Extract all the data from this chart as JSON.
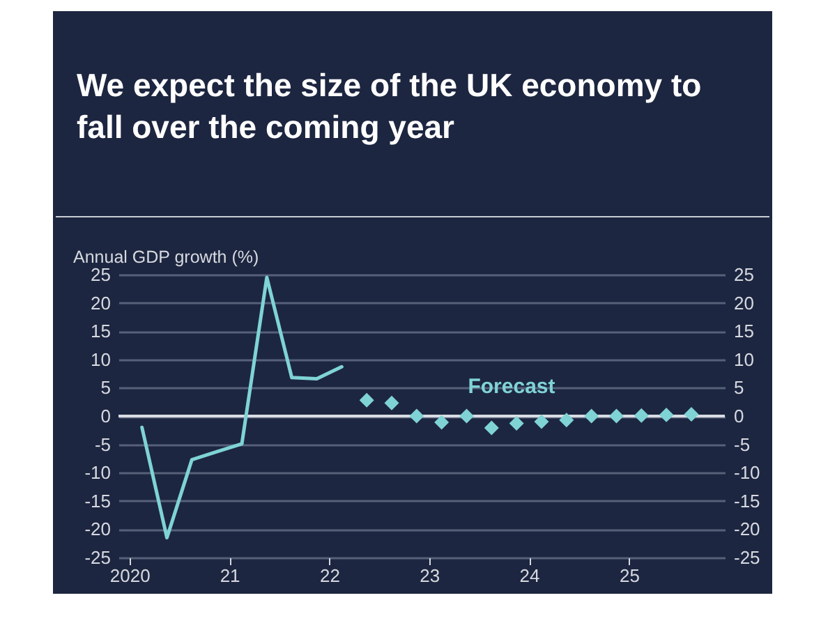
{
  "chart_data": {
    "type": "line",
    "title": "We expect the size of the UK economy to fall over the coming year",
    "ylabel": "Annual GDP growth (%)",
    "annotations": [
      "Forecast"
    ],
    "series": [
      {
        "color": "#7fd3d5",
        "x": [
          2020.125,
          2020.375,
          2020.625,
          2020.875,
          2021.125,
          2021.375,
          2021.625,
          2021.875,
          2022.125
        ],
        "values": [
          -2,
          -21.5,
          -7.7,
          -6.3,
          -4.9,
          24.5,
          6.8,
          6.6,
          8.7
        ]
      },
      {
        "type": "scatter",
        "marker": "diamond",
        "color": "#7fd3d5",
        "x": [
          2022.375,
          2022.625,
          2022.875,
          2023.125,
          2023.375,
          2023.625,
          2023.875,
          2024.125,
          2024.375,
          2024.625,
          2024.875,
          2025.125,
          2025.375,
          2025.625
        ],
        "values": [
          2.8,
          2.3,
          0,
          -1.1,
          0,
          -2.1,
          -1.3,
          -1,
          -0.7,
          0,
          0,
          0.1,
          0.2,
          0.3
        ]
      }
    ],
    "xlim": [
      2019.89,
      2025.96
    ],
    "xticks": [
      {
        "value": 2020,
        "label": "2020"
      },
      {
        "value": 2021,
        "label": "21"
      },
      {
        "value": 2022,
        "label": "22"
      },
      {
        "value": 2023,
        "label": "23"
      },
      {
        "value": 2024,
        "label": "24"
      },
      {
        "value": 2025,
        "label": "25"
      }
    ],
    "ylim": [
      -25,
      25
    ],
    "yticks": [
      -25,
      -20,
      -15,
      -10,
      -5,
      0,
      5,
      10,
      15,
      20,
      25
    ],
    "y2lim": [
      -25,
      25
    ],
    "y2ticks": [
      -25,
      -20,
      -15,
      -10,
      -5,
      0,
      5,
      10,
      15,
      20,
      25
    ],
    "ref_lines": [
      {
        "axis": "y",
        "value": 0,
        "color": "#d9dce3"
      }
    ],
    "grid": "y"
  }
}
